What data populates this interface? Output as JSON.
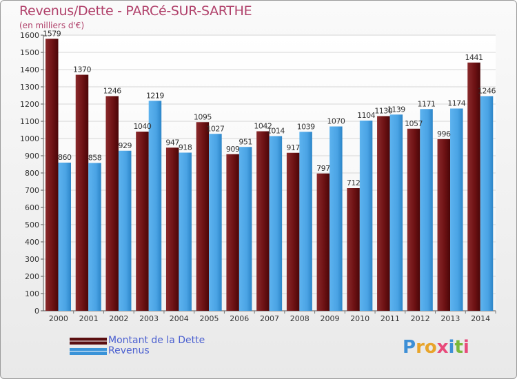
{
  "title": "Revenus/Dette - PARCé-SUR-SARTHE",
  "subtitle": "(en milliers d'€)",
  "logo": {
    "text": "Proxiti",
    "letters": [
      "P",
      "r",
      "o",
      "x",
      "i",
      "t",
      "i"
    ],
    "colors": [
      "#3d8fd6",
      "#e8a42a",
      "#e8a42a",
      "#e84a7a",
      "#3d8fd6",
      "#7ab83a",
      "#e84a7a"
    ]
  },
  "legend": [
    {
      "label": "Montant de la Dette",
      "color": "#7a1a1c"
    },
    {
      "label": "Revenus",
      "color": "#4aa3e4"
    }
  ],
  "chart_data": {
    "type": "bar",
    "title": "Revenus/Dette - PARCé-SUR-SARTHE",
    "ylabel": "(en milliers d'€)",
    "ylim": [
      0,
      1600
    ],
    "yticks": [
      0,
      100,
      200,
      300,
      400,
      500,
      600,
      700,
      800,
      900,
      1000,
      1100,
      1200,
      1300,
      1400,
      1500,
      1600
    ],
    "grid": true,
    "legend_position": "bottom-left",
    "categories": [
      "2000",
      "2001",
      "2002",
      "2003",
      "2004",
      "2005",
      "2006",
      "2007",
      "2008",
      "2009",
      "2010",
      "2011",
      "2012",
      "2013",
      "2014"
    ],
    "series": [
      {
        "name": "Montant de la Dette",
        "color": "#7a1a1c",
        "values": [
          1579,
          1370,
          1246,
          1040,
          947,
          1095,
          909,
          1042,
          917,
          797,
          712,
          1130,
          1057,
          996,
          1441
        ],
        "labels": [
          "1579",
          "1370",
          "1246",
          "1040",
          "947",
          "1095",
          "909",
          "1042",
          "917",
          "797",
          "712",
          "1130",
          "1057",
          "996",
          "1441"
        ]
      },
      {
        "name": "Revenus",
        "color": "#4aa3e4",
        "values": [
          860,
          858,
          929,
          1219,
          918,
          1027,
          951,
          1014,
          1039,
          1070,
          1104,
          1139,
          1171,
          1174,
          1246
        ],
        "labels": [
          "860",
          "858",
          "929",
          "1219",
          "918",
          "1027",
          "951",
          "1014",
          "1039",
          "1070",
          "1104",
          "1139",
          "1171",
          "1174",
          "1246"
        ]
      }
    ]
  }
}
